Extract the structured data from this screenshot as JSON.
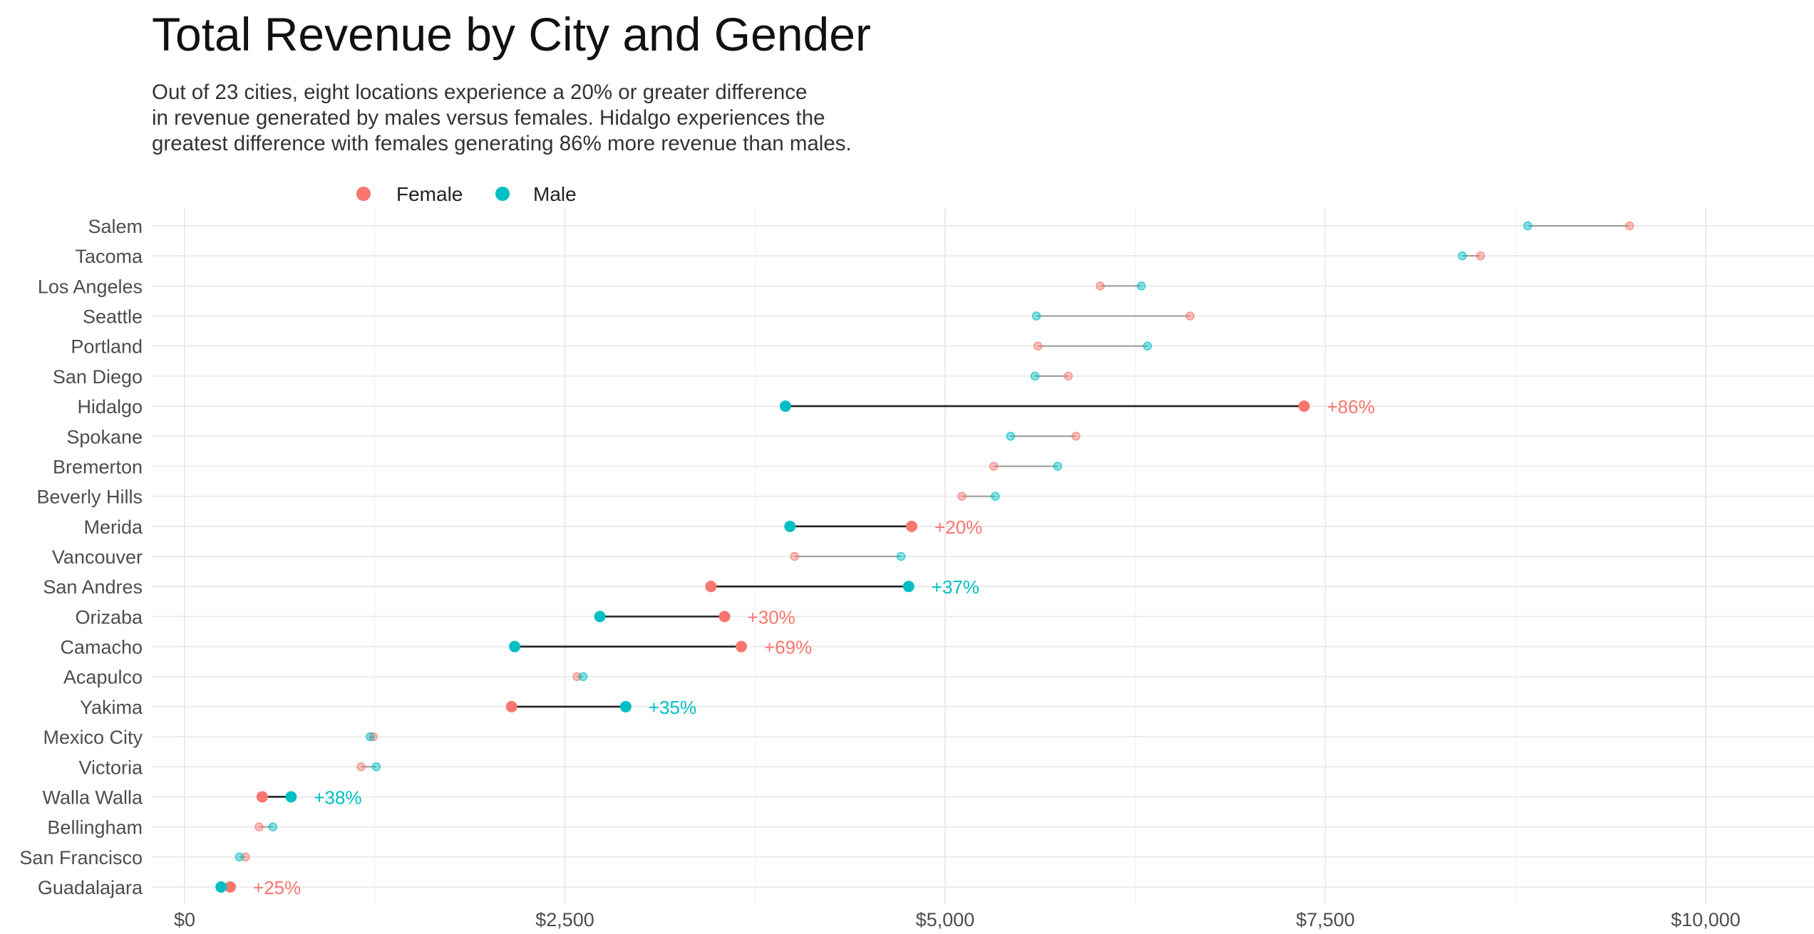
{
  "title": "Total Revenue by City and Gender",
  "subtitle_lines": [
    "Out of 23 cities, eight locations experience a 20% or greater difference",
    "in revenue generated by males versus females. Hidalgo experiences the",
    "greatest difference with females generating 86% more revenue than males."
  ],
  "colors": {
    "female": "#F8766D",
    "male": "#00BFC4",
    "highlight_line": "#222222",
    "muted_line": "#9a9a9a",
    "grid": "#EBEBEB"
  },
  "chart_data": {
    "type": "dumbbell",
    "title": "Total Revenue by City and Gender",
    "xlabel": "",
    "ylabel": "",
    "xlim": [
      0,
      10500
    ],
    "x_ticks": [
      0,
      2500,
      5000,
      7500,
      10000
    ],
    "x_tick_labels": [
      "$0",
      "$2,500",
      "$5,000",
      "$7,500",
      "$10,000"
    ],
    "legend": {
      "position": "top-left",
      "entries": [
        "Female",
        "Male"
      ]
    },
    "grid": true,
    "categories": [
      "Salem",
      "Tacoma",
      "Los Angeles",
      "Seattle",
      "Portland",
      "San Diego",
      "Hidalgo",
      "Spokane",
      "Bremerton",
      "Beverly Hills",
      "Merida",
      "Vancouver",
      "San Andres",
      "Orizaba",
      "Camacho",
      "Acapulco",
      "Yakima",
      "Mexico City",
      "Victoria",
      "Walla Walla",
      "Bellingham",
      "San Francisco",
      "Guadalajara"
    ],
    "series": [
      {
        "name": "Female",
        "values": [
          9500,
          8520,
          6020,
          6610,
          5610,
          5810,
          7360,
          5860,
          5320,
          5110,
          4780,
          4010,
          3460,
          3550,
          3660,
          2580,
          2150,
          1240,
          1160,
          510,
          490,
          400,
          300
        ]
      },
      {
        "name": "Male",
        "values": [
          8830,
          8400,
          6290,
          5600,
          6330,
          5590,
          3950,
          5430,
          5740,
          5330,
          3980,
          4710,
          4760,
          2730,
          2170,
          2620,
          2900,
          1220,
          1260,
          700,
          580,
          360,
          240
        ]
      }
    ],
    "highlighted": [
      "Hidalgo",
      "Merida",
      "San Andres",
      "Orizaba",
      "Camacho",
      "Yakima",
      "Walla Walla",
      "Guadalajara"
    ],
    "annotations": [
      {
        "city": "Hidalgo",
        "label": "+86%",
        "color_series": "Female"
      },
      {
        "city": "Merida",
        "label": "+20%",
        "color_series": "Female"
      },
      {
        "city": "San Andres",
        "label": "+37%",
        "color_series": "Male"
      },
      {
        "city": "Orizaba",
        "label": "+30%",
        "color_series": "Female"
      },
      {
        "city": "Camacho",
        "label": "+69%",
        "color_series": "Female"
      },
      {
        "city": "Yakima",
        "label": "+35%",
        "color_series": "Male"
      },
      {
        "city": "Walla Walla",
        "label": "+38%",
        "color_series": "Male"
      },
      {
        "city": "Guadalajara",
        "label": "+25%",
        "color_series": "Female"
      }
    ]
  }
}
